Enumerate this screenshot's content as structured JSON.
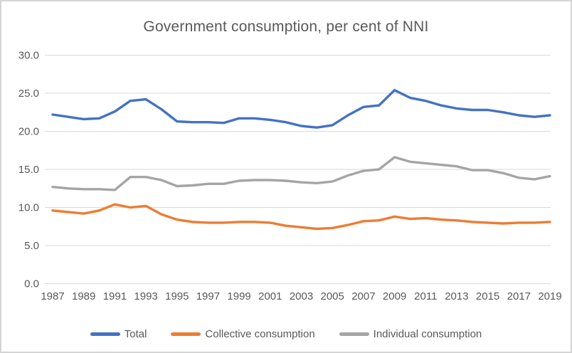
{
  "window": {
    "background": "#ffffff",
    "border_color": "#d4d4d4"
  },
  "chart_data": {
    "type": "line",
    "title": "Government consumption, per cent of NNI",
    "xlabel": "",
    "ylabel": "",
    "ylim": [
      0,
      30
    ],
    "y_ticks": [
      0,
      5,
      10,
      15,
      20,
      25,
      30
    ],
    "y_tick_labels": [
      "0.0",
      "5.0",
      "10.0",
      "15.0",
      "20.0",
      "25.0",
      "30.0"
    ],
    "x_tick_labels": [
      "1987",
      "1989",
      "1991",
      "1993",
      "1995",
      "1997",
      "1999",
      "2001",
      "2003",
      "2005",
      "2007",
      "2009",
      "2011",
      "2013",
      "2015",
      "2017",
      "2019"
    ],
    "categories": [
      1987,
      1988,
      1989,
      1990,
      1991,
      1992,
      1993,
      1994,
      1995,
      1996,
      1997,
      1998,
      1999,
      2000,
      2001,
      2002,
      2003,
      2004,
      2005,
      2006,
      2007,
      2008,
      2009,
      2010,
      2011,
      2012,
      2013,
      2014,
      2015,
      2016,
      2017,
      2018,
      2019
    ],
    "series": [
      {
        "name": "Total",
        "color": "#4472C4",
        "values": [
          22.2,
          21.9,
          21.6,
          21.7,
          22.6,
          24.0,
          24.2,
          22.9,
          21.3,
          21.2,
          21.2,
          21.1,
          21.7,
          21.7,
          21.5,
          21.2,
          20.7,
          20.5,
          20.8,
          22.1,
          23.2,
          23.4,
          25.4,
          24.4,
          24.0,
          23.4,
          23.0,
          22.8,
          22.8,
          22.5,
          22.1,
          21.9,
          22.1
        ]
      },
      {
        "name": "Collective consumption",
        "color": "#ED7D31",
        "values": [
          9.6,
          9.4,
          9.2,
          9.6,
          10.4,
          10.0,
          10.2,
          9.1,
          8.4,
          8.1,
          8.0,
          8.0,
          8.1,
          8.1,
          8.0,
          7.6,
          7.4,
          7.2,
          7.3,
          7.7,
          8.2,
          8.3,
          8.8,
          8.5,
          8.6,
          8.4,
          8.3,
          8.1,
          8.0,
          7.9,
          8.0,
          8.0,
          8.1
        ]
      },
      {
        "name": "Individual consumption",
        "color": "#A5A5A5",
        "values": [
          12.7,
          12.5,
          12.4,
          12.4,
          12.3,
          14.0,
          14.0,
          13.6,
          12.8,
          12.9,
          13.1,
          13.1,
          13.5,
          13.6,
          13.6,
          13.5,
          13.3,
          13.2,
          13.4,
          14.2,
          14.8,
          15.0,
          16.6,
          16.0,
          15.8,
          15.6,
          15.4,
          14.9,
          14.9,
          14.5,
          13.9,
          13.7,
          14.1
        ]
      }
    ],
    "grid": "horizontal",
    "gridline_color": "#d9d9d9",
    "text_color": "#595959",
    "legend_position": "bottom"
  }
}
